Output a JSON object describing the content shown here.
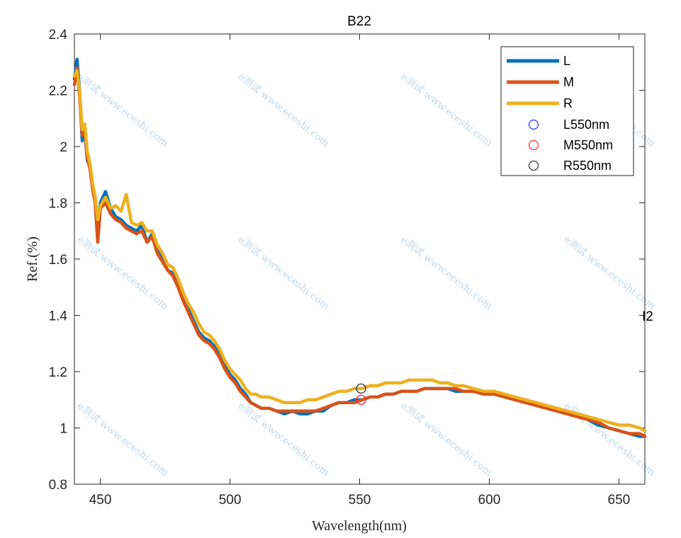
{
  "chart_data": {
    "type": "line",
    "title": "B22",
    "xlabel": "Wavelength(nm)",
    "ylabel": "Ref.(%)",
    "xlim": [
      440,
      660
    ],
    "ylim": [
      0.8,
      2.4
    ],
    "xticks": [
      450,
      500,
      550,
      600,
      650
    ],
    "yticks": [
      0.8,
      1,
      1.2,
      1.4,
      1.6,
      1.8,
      2,
      2.2,
      2.4
    ],
    "xtick_labels": [
      "450",
      "500",
      "550",
      "600",
      "650"
    ],
    "ytick_labels": [
      "0.8",
      "1",
      "1.2",
      "1.4",
      "1.6",
      "1.8",
      "2",
      "2.2",
      "2.4"
    ],
    "legend_position": "top-right",
    "side_annotation": "I2",
    "watermark": "e测试 www.eceshi.com",
    "colors": {
      "L": "#0072bd",
      "M": "#d95319",
      "R": "#edb120",
      "L550nm": "#2b2bff",
      "M550nm": "#ff3030",
      "R550nm": "#333333"
    },
    "x": [
      440,
      441,
      442,
      443,
      444,
      445,
      446,
      447,
      448,
      449,
      450,
      452,
      454,
      456,
      458,
      460,
      462,
      464,
      466,
      468,
      470,
      472,
      474,
      476,
      478,
      480,
      482,
      484,
      486,
      488,
      490,
      492,
      494,
      496,
      498,
      500,
      502,
      504,
      506,
      508,
      510,
      512,
      515,
      518,
      521,
      524,
      527,
      530,
      533,
      536,
      539,
      542,
      545,
      548,
      551,
      554,
      557,
      560,
      563,
      566,
      569,
      572,
      575,
      578,
      581,
      584,
      587,
      590,
      594,
      598,
      602,
      606,
      610,
      614,
      618,
      622,
      626,
      630,
      634,
      638,
      642,
      646,
      650,
      654,
      658,
      660
    ],
    "series": [
      {
        "name": "L",
        "values": [
          2.24,
          2.31,
          2.2,
          2.02,
          2.05,
          1.95,
          1.93,
          1.86,
          1.82,
          1.72,
          1.8,
          1.84,
          1.78,
          1.75,
          1.74,
          1.72,
          1.71,
          1.7,
          1.72,
          1.66,
          1.69,
          1.63,
          1.6,
          1.56,
          1.55,
          1.52,
          1.46,
          1.42,
          1.38,
          1.34,
          1.32,
          1.31,
          1.29,
          1.26,
          1.22,
          1.19,
          1.17,
          1.14,
          1.12,
          1.09,
          1.08,
          1.07,
          1.07,
          1.06,
          1.05,
          1.06,
          1.05,
          1.05,
          1.06,
          1.06,
          1.08,
          1.09,
          1.09,
          1.1,
          1.1,
          1.11,
          1.11,
          1.12,
          1.12,
          1.13,
          1.13,
          1.13,
          1.14,
          1.14,
          1.14,
          1.14,
          1.13,
          1.13,
          1.13,
          1.12,
          1.12,
          1.11,
          1.1,
          1.09,
          1.08,
          1.07,
          1.06,
          1.05,
          1.04,
          1.03,
          1.01,
          1.0,
          0.99,
          0.98,
          0.97,
          0.97
        ]
      },
      {
        "name": "M",
        "values": [
          2.22,
          2.28,
          2.18,
          2.04,
          2.06,
          1.96,
          1.92,
          1.85,
          1.8,
          1.66,
          1.78,
          1.8,
          1.76,
          1.74,
          1.73,
          1.71,
          1.7,
          1.69,
          1.7,
          1.66,
          1.68,
          1.62,
          1.59,
          1.56,
          1.54,
          1.5,
          1.45,
          1.41,
          1.37,
          1.33,
          1.31,
          1.3,
          1.28,
          1.25,
          1.21,
          1.18,
          1.16,
          1.13,
          1.11,
          1.09,
          1.08,
          1.07,
          1.07,
          1.06,
          1.06,
          1.06,
          1.06,
          1.06,
          1.06,
          1.07,
          1.08,
          1.09,
          1.09,
          1.09,
          1.1,
          1.11,
          1.11,
          1.12,
          1.12,
          1.13,
          1.13,
          1.13,
          1.14,
          1.14,
          1.14,
          1.14,
          1.14,
          1.13,
          1.13,
          1.12,
          1.12,
          1.11,
          1.1,
          1.09,
          1.08,
          1.07,
          1.06,
          1.05,
          1.04,
          1.03,
          1.02,
          1.0,
          0.99,
          0.98,
          0.98,
          0.97
        ]
      },
      {
        "name": "R",
        "values": [
          2.25,
          2.27,
          2.2,
          2.06,
          2.08,
          1.98,
          1.94,
          1.87,
          1.82,
          1.74,
          1.79,
          1.82,
          1.78,
          1.79,
          1.77,
          1.83,
          1.73,
          1.72,
          1.73,
          1.7,
          1.7,
          1.65,
          1.62,
          1.58,
          1.57,
          1.53,
          1.48,
          1.44,
          1.41,
          1.37,
          1.34,
          1.33,
          1.31,
          1.28,
          1.24,
          1.21,
          1.19,
          1.17,
          1.14,
          1.12,
          1.12,
          1.11,
          1.11,
          1.1,
          1.09,
          1.09,
          1.09,
          1.1,
          1.1,
          1.11,
          1.12,
          1.13,
          1.13,
          1.14,
          1.14,
          1.15,
          1.15,
          1.16,
          1.16,
          1.16,
          1.17,
          1.17,
          1.17,
          1.17,
          1.16,
          1.16,
          1.15,
          1.15,
          1.14,
          1.13,
          1.13,
          1.12,
          1.11,
          1.1,
          1.09,
          1.08,
          1.07,
          1.06,
          1.05,
          1.04,
          1.03,
          1.02,
          1.01,
          1.01,
          1.0,
          0.99
        ]
      }
    ],
    "markers": [
      {
        "name": "L550nm",
        "x": 550,
        "y": 1.1,
        "color": "#2b2bff"
      },
      {
        "name": "M550nm",
        "x": 550,
        "y": 1.1,
        "color": "#ff3030"
      },
      {
        "name": "R550nm",
        "x": 550,
        "y": 1.14,
        "color": "#333333"
      }
    ],
    "legend": [
      "L",
      "M",
      "R",
      "L550nm",
      "M550nm",
      "R550nm"
    ]
  }
}
